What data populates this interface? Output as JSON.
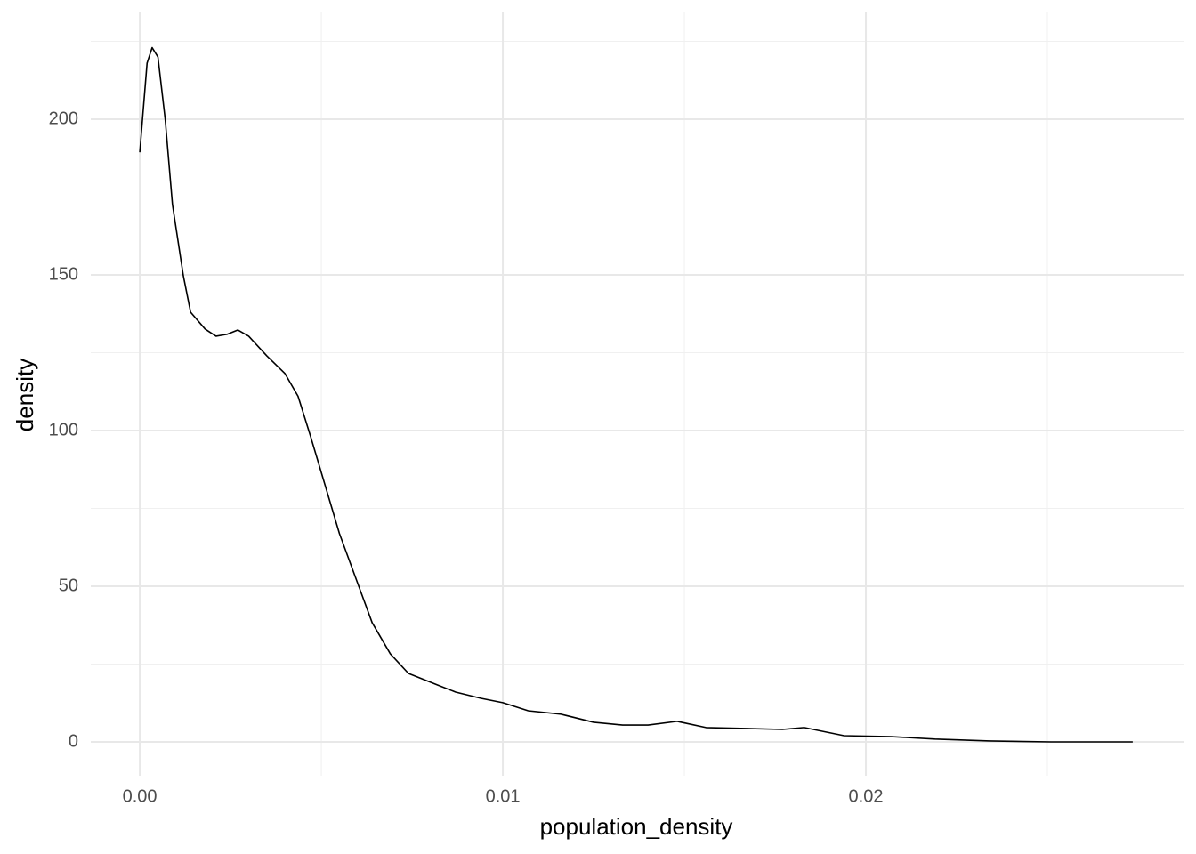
{
  "chart_data": {
    "type": "line",
    "x_label": "population_density",
    "y_label": "density",
    "x": [
      0,
      0.0002,
      0.00034,
      0.0005,
      0.0007,
      0.0009,
      0.0012,
      0.0014,
      0.0018,
      0.0021,
      0.0024,
      0.0027,
      0.003,
      0.0035,
      0.004,
      0.00436,
      0.0047,
      0.0051,
      0.0055,
      0.006,
      0.0064,
      0.0069,
      0.0074,
      0.0082,
      0.0087,
      0.0094,
      0.01,
      0.0107,
      0.0116,
      0.0125,
      0.0133,
      0.014,
      0.0148,
      0.0156,
      0.0167,
      0.0177,
      0.0183,
      0.0194,
      0.0207,
      0.0219,
      0.0234,
      0.0251,
      0.02735
    ],
    "values": [
      189.4,
      218,
      223,
      220,
      200,
      172.6,
      149.7,
      138,
      132.6,
      130.3,
      130.9,
      132.3,
      130.3,
      124,
      118.3,
      111,
      98.3,
      82.6,
      66.9,
      51,
      38.3,
      28.3,
      22,
      18.3,
      16,
      14,
      12.6,
      10,
      8.9,
      6.3,
      5.4,
      5.4,
      6.6,
      4.6,
      4.3,
      4,
      4.6,
      2,
      1.7,
      0.9,
      0.3,
      0,
      0
    ],
    "color": "#000000",
    "xlim": [
      -0.00135,
      0.02875
    ],
    "ylim": [
      -10.86,
      234.3
    ],
    "xticks": [
      {
        "value": 0,
        "label": "0.00"
      },
      0.01,
      0.02
    ],
    "yticks": [
      0,
      50,
      100,
      150,
      200
    ],
    "xminorticks": [
      0.005,
      0.015,
      0.025
    ],
    "yminorticks": [
      25,
      75,
      125,
      175,
      225
    ],
    "grid": true
  }
}
